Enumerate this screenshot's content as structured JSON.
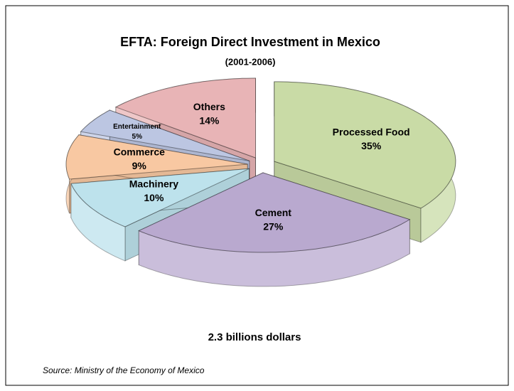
{
  "chart_data": {
    "type": "pie3d",
    "title": "EFTA: Foreign Direct Investment in Mexico",
    "subtitle": "(2001-2006)",
    "annotation": "2.3 billions dollars",
    "source": "Source: Ministry of the Economy of Mexico",
    "categories": [
      "Processed Food",
      "Cement",
      "Machinery",
      "Commerce",
      "Entertainment",
      "Others"
    ],
    "values": [
      35,
      27,
      10,
      9,
      5,
      14
    ],
    "value_labels": [
      "35%",
      "27%",
      "10%",
      "9%",
      "5%",
      "14%"
    ],
    "colors": [
      "#c9dba6",
      "#b9a9cf",
      "#bde2ec",
      "#f8c8a2",
      "#bcc6e2",
      "#e8b4b6"
    ]
  }
}
